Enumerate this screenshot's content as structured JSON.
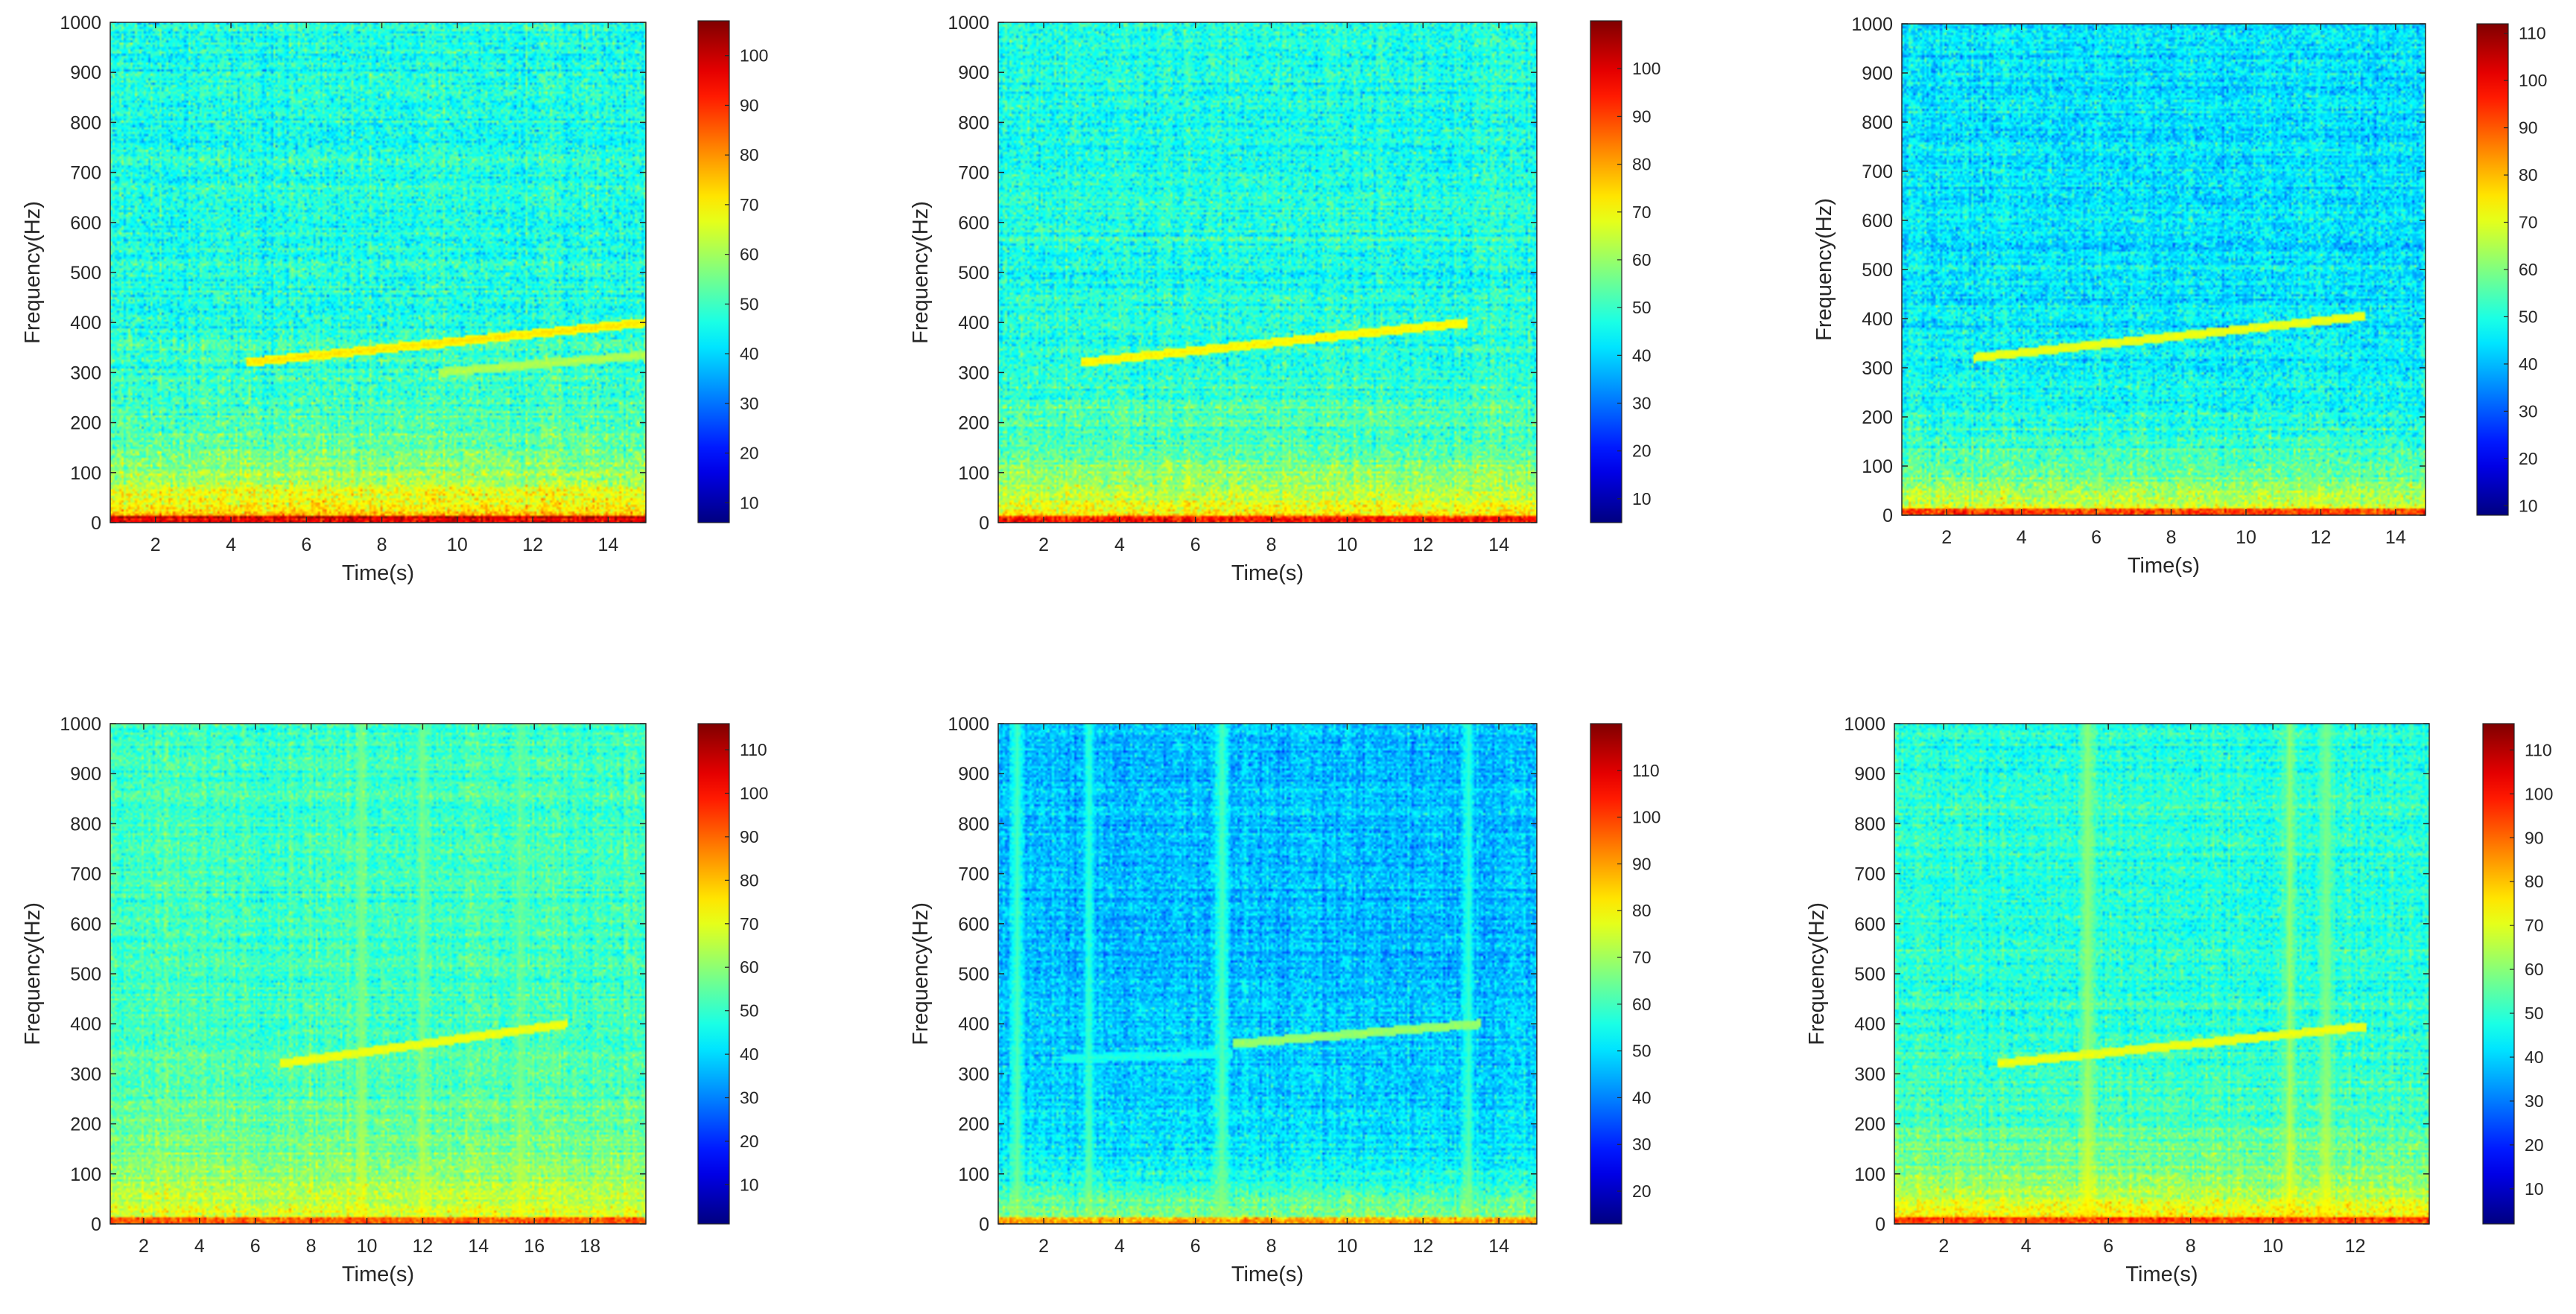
{
  "figure": {
    "colormap": "jet",
    "background": "#ffffff",
    "axis_color": "#262626",
    "colormap_stops": [
      "#00008f",
      "#0000ff",
      "#00ffff",
      "#ffff00",
      "#ff0000",
      "#800000"
    ]
  },
  "chart_data": [
    {
      "type": "heatmap",
      "xlabel": "Time(s)",
      "ylabel": "Frequency(Hz)",
      "xlim": [
        0.8,
        15.0
      ],
      "ylim": [
        0,
        1000
      ],
      "xticks": [
        2,
        4,
        6,
        8,
        10,
        12,
        14
      ],
      "yticks": [
        0,
        100,
        200,
        300,
        400,
        500,
        600,
        700,
        800,
        900,
        1000
      ],
      "colorbar": {
        "range": [
          6,
          107
        ],
        "ticks": [
          10,
          20,
          30,
          40,
          50,
          60,
          70,
          80,
          90,
          100
        ]
      },
      "background_level": 47,
      "low_band_level": 78,
      "noise_spread": 12,
      "tones": [
        {
          "t_start": 4.4,
          "t_end": 15.0,
          "f_start": 320,
          "f_end": 400,
          "level": 72
        },
        {
          "t_start": 9.5,
          "t_end": 15.0,
          "f_start": 300,
          "f_end": 335,
          "level": 62
        }
      ],
      "bursts": []
    },
    {
      "type": "heatmap",
      "xlabel": "Time(s)",
      "ylabel": "Frequency(Hz)",
      "xlim": [
        0.8,
        15.0
      ],
      "ylim": [
        0,
        1000
      ],
      "xticks": [
        2,
        4,
        6,
        8,
        10,
        12,
        14
      ],
      "yticks": [
        0,
        100,
        200,
        300,
        400,
        500,
        600,
        700,
        800,
        900,
        1000
      ],
      "colorbar": {
        "range": [
          5,
          110
        ],
        "ticks": [
          10,
          20,
          30,
          40,
          50,
          60,
          70,
          80,
          90,
          100
        ]
      },
      "background_level": 47,
      "low_band_level": 76,
      "noise_spread": 12,
      "tones": [
        {
          "t_start": 3.0,
          "t_end": 13.2,
          "f_start": 320,
          "f_end": 400,
          "level": 72
        }
      ],
      "bursts": []
    },
    {
      "type": "heatmap",
      "xlabel": "Time(s)",
      "ylabel": "Frequency(Hz)",
      "xlim": [
        0.8,
        14.8
      ],
      "ylim": [
        0,
        1000
      ],
      "xticks": [
        2,
        4,
        6,
        8,
        10,
        12,
        14
      ],
      "yticks": [
        0,
        100,
        200,
        300,
        400,
        500,
        600,
        700,
        800,
        900,
        1000
      ],
      "colorbar": {
        "range": [
          8,
          112
        ],
        "ticks": [
          10,
          20,
          30,
          40,
          50,
          60,
          70,
          80,
          90,
          100,
          110
        ]
      },
      "background_level": 45,
      "low_band_level": 74,
      "noise_spread": 12,
      "tones": [
        {
          "t_start": 2.7,
          "t_end": 13.2,
          "f_start": 320,
          "f_end": 405,
          "level": 72
        }
      ],
      "bursts": []
    },
    {
      "type": "heatmap",
      "xlabel": "Time(s)",
      "ylabel": "Frequency(Hz)",
      "xlim": [
        0.8,
        20.0
      ],
      "ylim": [
        0,
        1000
      ],
      "xticks": [
        2,
        4,
        6,
        8,
        10,
        12,
        14,
        16,
        18
      ],
      "yticks": [
        0,
        100,
        200,
        300,
        400,
        500,
        600,
        700,
        800,
        900,
        1000
      ],
      "colorbar": {
        "range": [
          1,
          116
        ],
        "ticks": [
          10,
          20,
          30,
          40,
          50,
          60,
          70,
          80,
          90,
          100,
          110
        ]
      },
      "background_level": 52,
      "low_band_level": 74,
      "noise_spread": 11,
      "tones": [
        {
          "t_start": 6.9,
          "t_end": 17.2,
          "f_start": 320,
          "f_end": 400,
          "level": 72
        }
      ],
      "bursts": [
        {
          "t": 9.8,
          "width": 0.25,
          "level": 58
        },
        {
          "t": 12.0,
          "width": 0.25,
          "level": 58
        },
        {
          "t": 15.5,
          "width": 0.25,
          "level": 56
        }
      ]
    },
    {
      "type": "heatmap",
      "xlabel": "Time(s)",
      "ylabel": "Frequency(Hz)",
      "xlim": [
        0.8,
        15.0
      ],
      "ylim": [
        0,
        1000
      ],
      "xticks": [
        2,
        4,
        6,
        8,
        10,
        12,
        14
      ],
      "yticks": [
        0,
        100,
        200,
        300,
        400,
        500,
        600,
        700,
        800,
        900,
        1000
      ],
      "colorbar": {
        "range": [
          13,
          120
        ],
        "ticks": [
          20,
          30,
          40,
          50,
          60,
          70,
          80,
          90,
          100,
          110
        ]
      },
      "background_level": 46,
      "low_band_level": 70,
      "noise_spread": 11,
      "tones": [
        {
          "t_start": 2.5,
          "t_end": 7.0,
          "f_start": 330,
          "f_end": 340,
          "level": 57
        },
        {
          "t_start": 7.0,
          "t_end": 13.5,
          "f_start": 360,
          "f_end": 400,
          "level": 70
        }
      ],
      "bursts": [
        {
          "t": 1.3,
          "width": 0.25,
          "level": 62
        },
        {
          "t": 3.2,
          "width": 0.2,
          "level": 60
        },
        {
          "t": 6.7,
          "width": 0.25,
          "level": 64
        },
        {
          "t": 13.2,
          "width": 0.2,
          "level": 60
        }
      ]
    },
    {
      "type": "heatmap",
      "xlabel": "Time(s)",
      "ylabel": "Frequency(Hz)",
      "xlim": [
        0.8,
        13.8
      ],
      "ylim": [
        0,
        1000
      ],
      "xticks": [
        2,
        4,
        6,
        8,
        10,
        12
      ],
      "yticks": [
        0,
        100,
        200,
        300,
        400,
        500,
        600,
        700,
        800,
        900,
        1000
      ],
      "colorbar": {
        "range": [
          2,
          116
        ],
        "ticks": [
          10,
          20,
          30,
          40,
          50,
          60,
          70,
          80,
          90,
          100,
          110
        ]
      },
      "background_level": 49,
      "low_band_level": 78,
      "noise_spread": 11,
      "tones": [
        {
          "t_start": 3.3,
          "t_end": 12.3,
          "f_start": 320,
          "f_end": 395,
          "level": 72
        }
      ],
      "bursts": [
        {
          "t": 5.5,
          "width": 0.25,
          "level": 62
        },
        {
          "t": 10.4,
          "width": 0.2,
          "level": 62
        },
        {
          "t": 11.3,
          "width": 0.25,
          "level": 60
        }
      ]
    }
  ]
}
